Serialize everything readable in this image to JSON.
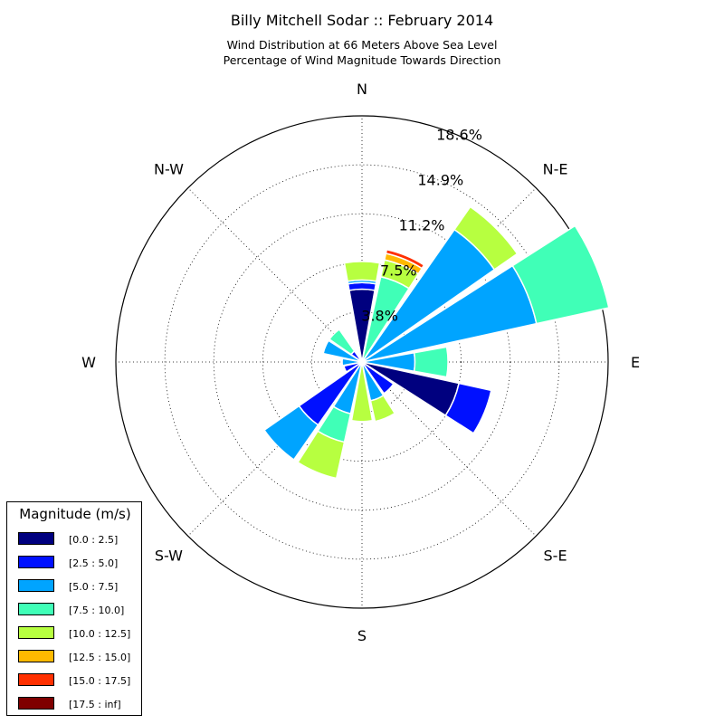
{
  "chart_data": {
    "type": "windrose",
    "title": "Billy Mitchell Sodar :: February 2014",
    "subtitle_lines": [
      "Wind Distribution at 66 Meters Above Sea Level",
      "Percentage of Wind Magnitude Towards Direction"
    ],
    "direction_labels": [
      "N",
      "N-E",
      "E",
      "S-E",
      "S",
      "S-W",
      "W",
      "N-W"
    ],
    "radial_ticks": [
      "3.8%",
      "7.5%",
      "11.2%",
      "14.9%",
      "18.6%"
    ],
    "radial_values": [
      3.8,
      7.5,
      11.2,
      14.9,
      18.6
    ],
    "r_max": 18.6,
    "grid": true,
    "legend_title": "Magnitude (m/s)",
    "legend_placement": "lower-left",
    "bins": [
      {
        "label": "[0.0 : 2.5]",
        "color": "#00007f"
      },
      {
        "label": "[2.5 : 5.0]",
        "color": "#0010ff"
      },
      {
        "label": "[5.0 : 7.5]",
        "color": "#00a4ff"
      },
      {
        "label": "[7.5 : 10.0]",
        "color": "#40ffb7"
      },
      {
        "label": "[10.0 : 12.5]",
        "color": "#b7ff40"
      },
      {
        "label": "[12.5 : 15.0]",
        "color": "#ffb900"
      },
      {
        "label": "[15.0 : 17.5]",
        "color": "#ff3000"
      },
      {
        "label": "[17.5 : inf]",
        "color": "#7f0000"
      }
    ],
    "directions_deg": [
      0,
      22.5,
      45,
      67.5,
      90,
      112.5,
      135,
      157.5,
      180,
      202.5,
      225,
      247.5,
      270,
      292.5,
      315,
      337.5
    ],
    "cumulative_percent": [
      [
        5.5,
        6.0,
        6.2,
        6.2,
        7.6,
        7.6,
        7.6,
        7.6
      ],
      [
        0.0,
        0.0,
        0.0,
        6.6,
        7.9,
        8.4,
        8.7,
        8.7
      ],
      [
        0.0,
        0.0,
        12.2,
        12.2,
        14.3,
        14.3,
        14.3,
        14.3
      ],
      [
        0.0,
        0.0,
        13.5,
        19.1,
        19.1,
        19.1,
        19.1,
        19.1
      ],
      [
        0.0,
        0.0,
        4.0,
        6.5,
        6.5,
        6.5,
        6.5,
        6.5
      ],
      [
        7.5,
        10.0,
        10.0,
        10.0,
        10.0,
        10.0,
        10.0,
        10.0
      ],
      [
        0.0,
        2.9,
        2.9,
        2.9,
        2.9,
        2.9,
        2.9,
        2.9
      ],
      [
        0.0,
        0.0,
        3.0,
        3.0,
        4.6,
        4.6,
        4.6,
        4.6
      ],
      [
        0.0,
        0.0,
        0.0,
        0.0,
        4.5,
        4.5,
        4.5,
        4.5
      ],
      [
        0.0,
        0.0,
        4.0,
        6.2,
        9.0,
        9.0,
        9.0,
        9.0
      ],
      [
        0.0,
        5.8,
        9.0,
        9.0,
        9.0,
        9.0,
        9.0,
        9.0
      ],
      [
        0.0,
        1.4,
        1.4,
        1.4,
        1.4,
        1.4,
        1.4,
        1.4
      ],
      [
        0.0,
        0.0,
        1.5,
        1.5,
        1.5,
        1.5,
        1.5,
        1.5
      ],
      [
        0.0,
        0.0,
        3.0,
        3.0,
        3.0,
        3.0,
        3.0,
        3.0
      ],
      [
        0.0,
        1.0,
        1.0,
        3.0,
        3.0,
        3.0,
        3.0,
        3.0
      ],
      [
        0.0,
        0.0,
        0.0,
        0.0,
        0.0,
        0.0,
        0.0,
        0.0
      ]
    ]
  }
}
